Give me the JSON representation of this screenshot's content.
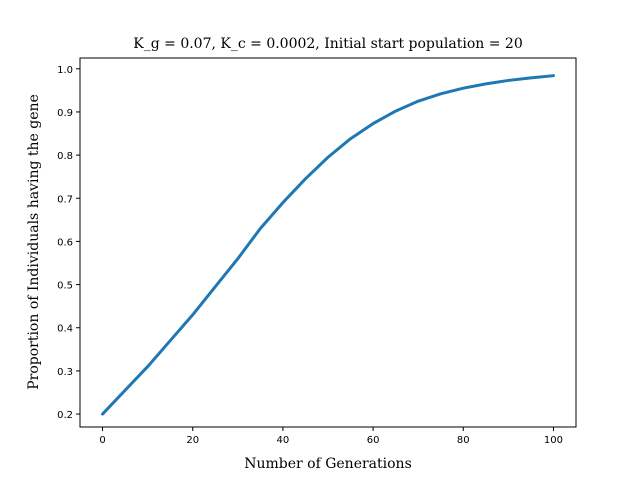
{
  "chart_data": {
    "type": "line",
    "title": "K_g = 0.07, K_c = 0.0002, Initial start population = 20",
    "xlabel": "Number of Generations",
    "ylabel": "Proportion of Individuals having the gene",
    "xlim": [
      -5,
      105
    ],
    "ylim": [
      0.17,
      1.025
    ],
    "xticks": [
      0,
      20,
      40,
      60,
      80,
      100
    ],
    "yticks": [
      0.2,
      0.3,
      0.4,
      0.5,
      0.6,
      0.7,
      0.8,
      0.9,
      1.0
    ],
    "xtick_labels": [
      "0",
      "20",
      "40",
      "60",
      "80",
      "100"
    ],
    "ytick_labels": [
      "0.2",
      "0.3",
      "0.4",
      "0.5",
      "0.6",
      "0.7",
      "0.8",
      "0.9",
      "1.0"
    ],
    "grid": false,
    "legend": "none",
    "series": [
      {
        "color": "#1f77b4",
        "x": [
          0,
          5,
          10,
          15,
          20,
          25,
          30,
          35,
          40,
          45,
          50,
          55,
          60,
          65,
          70,
          75,
          80,
          85,
          90,
          95,
          100
        ],
        "y": [
          0.2,
          0.255,
          0.31,
          0.37,
          0.43,
          0.495,
          0.56,
          0.63,
          0.69,
          0.745,
          0.795,
          0.838,
          0.873,
          0.902,
          0.925,
          0.942,
          0.955,
          0.965,
          0.973,
          0.979,
          0.984
        ]
      }
    ]
  }
}
